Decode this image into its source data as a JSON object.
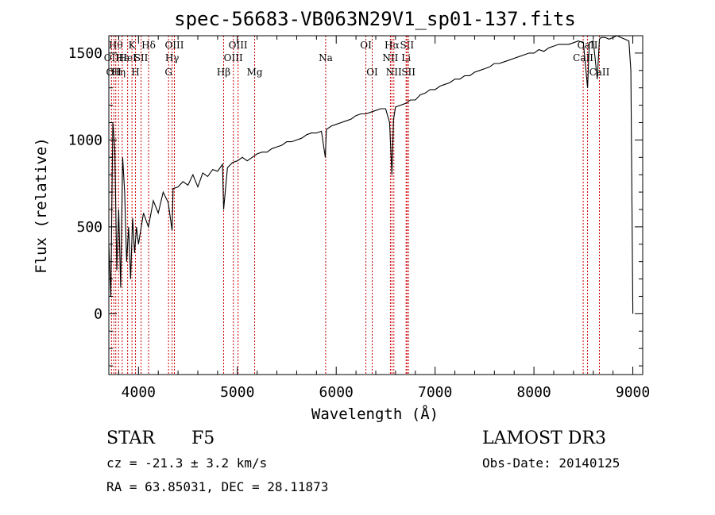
{
  "chart_data": {
    "type": "line",
    "title": "spec-56683-VB063N29V1_sp01-137.fits",
    "xlabel": "Wavelength (Å)",
    "ylabel": "Flux (relative)",
    "xlim": [
      3700,
      9100
    ],
    "ylim": [
      -350,
      1600
    ],
    "xticks": [
      4000,
      5000,
      6000,
      7000,
      8000,
      9000
    ],
    "yticks": [
      0,
      500,
      1000,
      1500
    ],
    "grid": false,
    "series": [
      {
        "name": "flux",
        "x": [
          3700,
          3720,
          3740,
          3760,
          3780,
          3800,
          3820,
          3840,
          3860,
          3880,
          3900,
          3920,
          3940,
          3960,
          3980,
          4000,
          4050,
          4100,
          4150,
          4200,
          4250,
          4300,
          4340,
          4350,
          4400,
          4450,
          4500,
          4550,
          4600,
          4650,
          4700,
          4750,
          4800,
          4850,
          4861,
          4900,
          4950,
          5000,
          5050,
          5100,
          5150,
          5200,
          5250,
          5300,
          5350,
          5400,
          5450,
          5500,
          5550,
          5600,
          5650,
          5700,
          5750,
          5800,
          5850,
          5890,
          5900,
          5950,
          6000,
          6050,
          6100,
          6150,
          6200,
          6250,
          6300,
          6350,
          6400,
          6450,
          6500,
          6540,
          6563,
          6580,
          6600,
          6650,
          6700,
          6750,
          6800,
          6850,
          6900,
          6950,
          7000,
          7050,
          7100,
          7150,
          7200,
          7250,
          7300,
          7350,
          7400,
          7450,
          7500,
          7550,
          7600,
          7650,
          7700,
          7750,
          7800,
          7850,
          7900,
          7950,
          8000,
          8050,
          8100,
          8150,
          8200,
          8250,
          8300,
          8350,
          8400,
          8450,
          8500,
          8542,
          8560,
          8600,
          8640,
          8662,
          8680,
          8720,
          8760,
          8800,
          8840,
          8880,
          8920,
          8960,
          8980,
          9000
        ],
        "values": [
          400,
          100,
          1100,
          950,
          250,
          600,
          150,
          900,
          700,
          300,
          500,
          200,
          550,
          350,
          500,
          400,
          580,
          500,
          650,
          580,
          700,
          640,
          480,
          720,
          730,
          760,
          740,
          800,
          730,
          810,
          790,
          830,
          820,
          860,
          600,
          840,
          870,
          880,
          900,
          880,
          900,
          920,
          930,
          930,
          950,
          960,
          970,
          990,
          990,
          1000,
          1010,
          1030,
          1040,
          1040,
          1050,
          900,
          1060,
          1080,
          1090,
          1100,
          1110,
          1120,
          1140,
          1150,
          1150,
          1160,
          1170,
          1180,
          1180,
          1100,
          800,
          1120,
          1190,
          1200,
          1210,
          1230,
          1230,
          1260,
          1270,
          1290,
          1290,
          1310,
          1320,
          1330,
          1350,
          1350,
          1370,
          1370,
          1390,
          1400,
          1410,
          1420,
          1440,
          1440,
          1450,
          1460,
          1470,
          1480,
          1490,
          1500,
          1500,
          1520,
          1510,
          1530,
          1540,
          1550,
          1550,
          1550,
          1560,
          1570,
          1560,
          1300,
          1560,
          1570,
          1350,
          1580,
          1590,
          1590,
          1580,
          1590,
          1600,
          1590,
          1580,
          1570,
          1400,
          0
        ]
      }
    ],
    "spectral_lines": [
      {
        "wave": 3727,
        "label": "OII",
        "row": 2
      },
      {
        "wave": 3750,
        "label": "OII",
        "row": 3
      },
      {
        "wave": 3770,
        "label": "Hθ",
        "row": 1
      },
      {
        "wave": 3798,
        "label": "Hη",
        "row": 3
      },
      {
        "wave": 3835,
        "label": "Hε",
        "row": 2
      },
      {
        "wave": 3890,
        "label": "HeI",
        "row": 2
      },
      {
        "wave": 3934,
        "label": "K",
        "row": 1
      },
      {
        "wave": 3969,
        "label": "H",
        "row": 3
      },
      {
        "wave": 4026,
        "label": "SII",
        "row": 2
      },
      {
        "wave": 4102,
        "label": "Hδ",
        "row": 1
      },
      {
        "wave": 4304,
        "label": "G",
        "row": 3
      },
      {
        "wave": 4340,
        "label": "Hγ",
        "row": 2
      },
      {
        "wave": 4363,
        "label": "OIII",
        "row": 1
      },
      {
        "wave": 4861,
        "label": "Hβ",
        "row": 3
      },
      {
        "wave": 4959,
        "label": "OIII",
        "row": 2
      },
      {
        "wave": 5007,
        "label": "OIII",
        "row": 1
      },
      {
        "wave": 5175,
        "label": "Mg",
        "row": 3
      },
      {
        "wave": 5893,
        "label": "Na",
        "row": 2
      },
      {
        "wave": 6300,
        "label": "OI",
        "row": 1
      },
      {
        "wave": 6364,
        "label": "OI",
        "row": 3
      },
      {
        "wave": 6548,
        "label": "NII",
        "row": 2
      },
      {
        "wave": 6563,
        "label": "Hα",
        "row": 1
      },
      {
        "wave": 6583,
        "label": "NII",
        "row": 3
      },
      {
        "wave": 6707,
        "label": "Li",
        "row": 2
      },
      {
        "wave": 6716,
        "label": "SII",
        "row": 1
      },
      {
        "wave": 6731,
        "label": "SII",
        "row": 3
      },
      {
        "wave": 8498,
        "label": "CaII",
        "row": 2
      },
      {
        "wave": 8542,
        "label": "CaII",
        "row": 1
      },
      {
        "wave": 8662,
        "label": "CaII",
        "row": 3
      }
    ]
  },
  "info": {
    "class": "STAR",
    "subclass": "F5",
    "survey": "LAMOST DR3",
    "cz": "cz = -21.3 ± 3.2 km/s",
    "obs_date": "Obs-Date: 20140125",
    "radec": "RA =  63.85031, DEC =  28.11873"
  },
  "colors": {
    "spectrum": "#000000",
    "line_markers": "#cc0000",
    "axes": "#000000"
  }
}
